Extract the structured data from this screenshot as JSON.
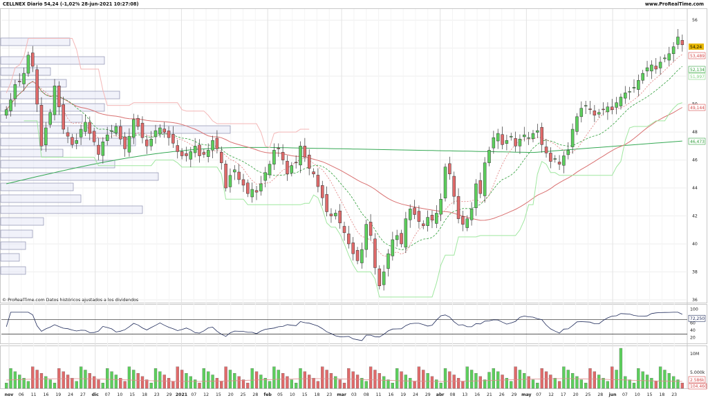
{
  "header": {
    "title": "CELLNEX Diario 54,24 (-1,02% 28-jun-2021 10:27:08)",
    "site": "www.ProRealTime.com"
  },
  "footer_note": "© ProRealTime.com  Datos históricos ajustados a los dividendos",
  "price_axis": {
    "ticks": [
      "56",
      "54",
      "52",
      "50",
      "48",
      "46",
      "44",
      "42",
      "40",
      "38",
      "36"
    ],
    "labels": [
      {
        "text": "54,24",
        "kind": "last",
        "color": "#e8b800"
      },
      {
        "text": "53,489",
        "kind": "ma",
        "color": "#d44a4a"
      },
      {
        "text": "52,134",
        "kind": "ma",
        "color": "#2f9e3a"
      },
      {
        "text": "51,997",
        "kind": "ma",
        "color": "#7fd07f"
      },
      {
        "text": "49,144",
        "kind": "ma",
        "color": "#d44a4a"
      },
      {
        "text": "46,473",
        "kind": "ma",
        "color": "#2f9e3a"
      }
    ]
  },
  "osc_axis": {
    "ticks": [
      "100",
      "60",
      "40",
      "20"
    ],
    "value_label": "72,250"
  },
  "vol_axis": {
    "ticks": [
      "10M",
      "5.000k"
    ],
    "labels": [
      "2.586k",
      "104.460"
    ]
  },
  "x_axis": {
    "labels": [
      "nov",
      "06",
      "11",
      "16",
      "19",
      "24",
      "27",
      "dic",
      "07",
      "10",
      "15",
      "18",
      "23",
      "29",
      "2021",
      "07",
      "12",
      "15",
      "20",
      "25",
      "28",
      "feb",
      "05",
      "10",
      "15",
      "18",
      "23",
      "mar",
      "03",
      "08",
      "11",
      "16",
      "19",
      "24",
      "29",
      "abr",
      "08",
      "13",
      "16",
      "21",
      "26",
      "29",
      "may",
      "07",
      "12",
      "17",
      "20",
      "25",
      "28",
      "jun",
      "07",
      "10",
      "15",
      "18",
      "23"
    ],
    "bold": [
      "nov",
      "dic",
      "2021",
      "feb",
      "mar",
      "abr",
      "may",
      "jun"
    ]
  },
  "chart_data": {
    "type": "candlestick",
    "title": "CELLNEX Diario",
    "ylim": [
      35.8,
      56.8
    ],
    "closes": [
      49.6,
      50.3,
      51.4,
      51.6,
      52.2,
      53.5,
      52.7,
      50.0,
      47.0,
      48.3,
      49.4,
      51.3,
      49.8,
      48.2,
      47.7,
      47.1,
      47.4,
      48.2,
      48.7,
      47.9,
      47.3,
      46.4,
      47.3,
      47.8,
      48.1,
      48.4,
      47.5,
      46.8,
      47.7,
      48.9,
      48.4,
      47.6,
      47.0,
      47.5,
      48.1,
      48.3,
      48.0,
      47.6,
      47.2,
      46.6,
      46.3,
      46.3,
      46.6,
      47.0,
      46.3,
      46.4,
      46.7,
      47.4,
      46.8,
      45.8,
      44.0,
      44.9,
      45.3,
      44.6,
      44.2,
      43.6,
      43.9,
      43.7,
      44.3,
      45.1,
      45.7,
      46.7,
      46.8,
      46.0,
      45.0,
      45.6,
      45.8,
      47.0,
      46.2,
      45.4,
      45.0,
      44.1,
      43.3,
      42.3,
      42.0,
      42.2,
      41.5,
      40.8,
      40.0,
      39.3,
      38.8,
      39.6,
      41.4,
      40.6,
      38.3,
      37.0,
      38.0,
      39.3,
      40.3,
      40.6,
      40.0,
      41.8,
      42.5,
      42.1,
      41.6,
      41.3,
      41.9,
      41.7,
      42.2,
      43.2,
      45.5,
      45.0,
      43.4,
      41.8,
      41.4,
      41.8,
      42.5,
      44.3,
      43.6,
      45.8,
      46.7,
      47.6,
      47.9,
      47.1,
      47.4,
      47.7,
      47.0,
      47.5,
      47.8,
      47.6,
      47.9,
      48.1,
      47.1,
      46.5,
      45.9,
      46.1,
      45.7,
      46.3,
      46.7,
      48.2,
      49.1,
      49.7,
      49.9,
      49.6,
      49.2,
      49.4,
      49.6,
      49.8,
      49.6,
      50.1,
      50.5,
      50.8,
      50.9,
      51.2,
      51.7,
      52.2,
      52.6,
      52.8,
      52.5,
      53.0,
      53.3,
      53.6,
      54.1,
      54.8,
      54.24
    ],
    "sma_red_fast_end": 53.489,
    "sma_green_fast_end": 52.134,
    "trail_stop_end": 51.997,
    "sma_red_slow_end": 49.144,
    "sma_green_slow_end": 46.473,
    "rsi_last": 72.25,
    "volume_scale": {
      "top_label": "10M",
      "mid_label": "5.000k"
    }
  }
}
